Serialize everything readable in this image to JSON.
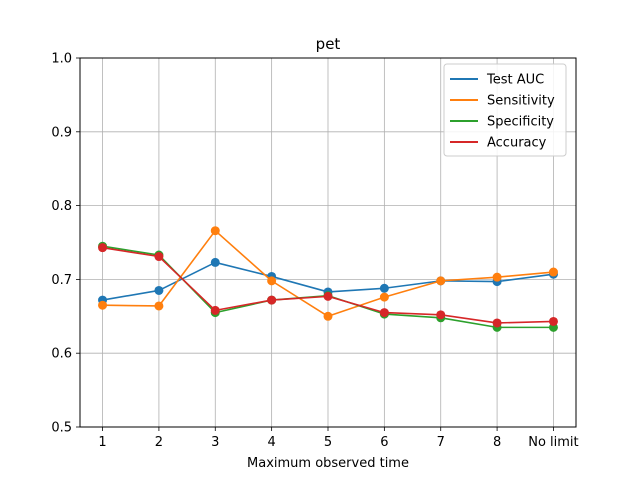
{
  "chart_data": {
    "type": "line",
    "title": "pet",
    "xlabel": "Maximum observed time",
    "ylabel": "",
    "categories": [
      "1",
      "2",
      "3",
      "4",
      "5",
      "6",
      "7",
      "8",
      "No limit"
    ],
    "ylim": [
      0.5,
      1.0
    ],
    "yticks": [
      "0.5",
      "0.6",
      "0.7",
      "0.8",
      "0.9",
      "1.0"
    ],
    "grid": true,
    "legend_position": "top-right",
    "series": [
      {
        "name": "Test AUC",
        "color": "#1f77b4",
        "values": [
          0.672,
          0.685,
          0.723,
          0.704,
          0.683,
          0.688,
          0.698,
          0.697,
          0.707
        ]
      },
      {
        "name": "Sensitivity",
        "color": "#ff7f0e",
        "values": [
          0.665,
          0.664,
          0.766,
          0.698,
          0.65,
          0.676,
          0.698,
          0.703,
          0.71
        ]
      },
      {
        "name": "Specificity",
        "color": "#2ca02c",
        "values": [
          0.745,
          0.733,
          0.655,
          0.672,
          0.678,
          0.653,
          0.648,
          0.635,
          0.635
        ]
      },
      {
        "name": "Accuracy",
        "color": "#d62728",
        "values": [
          0.743,
          0.731,
          0.658,
          0.672,
          0.677,
          0.655,
          0.652,
          0.641,
          0.643
        ]
      }
    ]
  }
}
